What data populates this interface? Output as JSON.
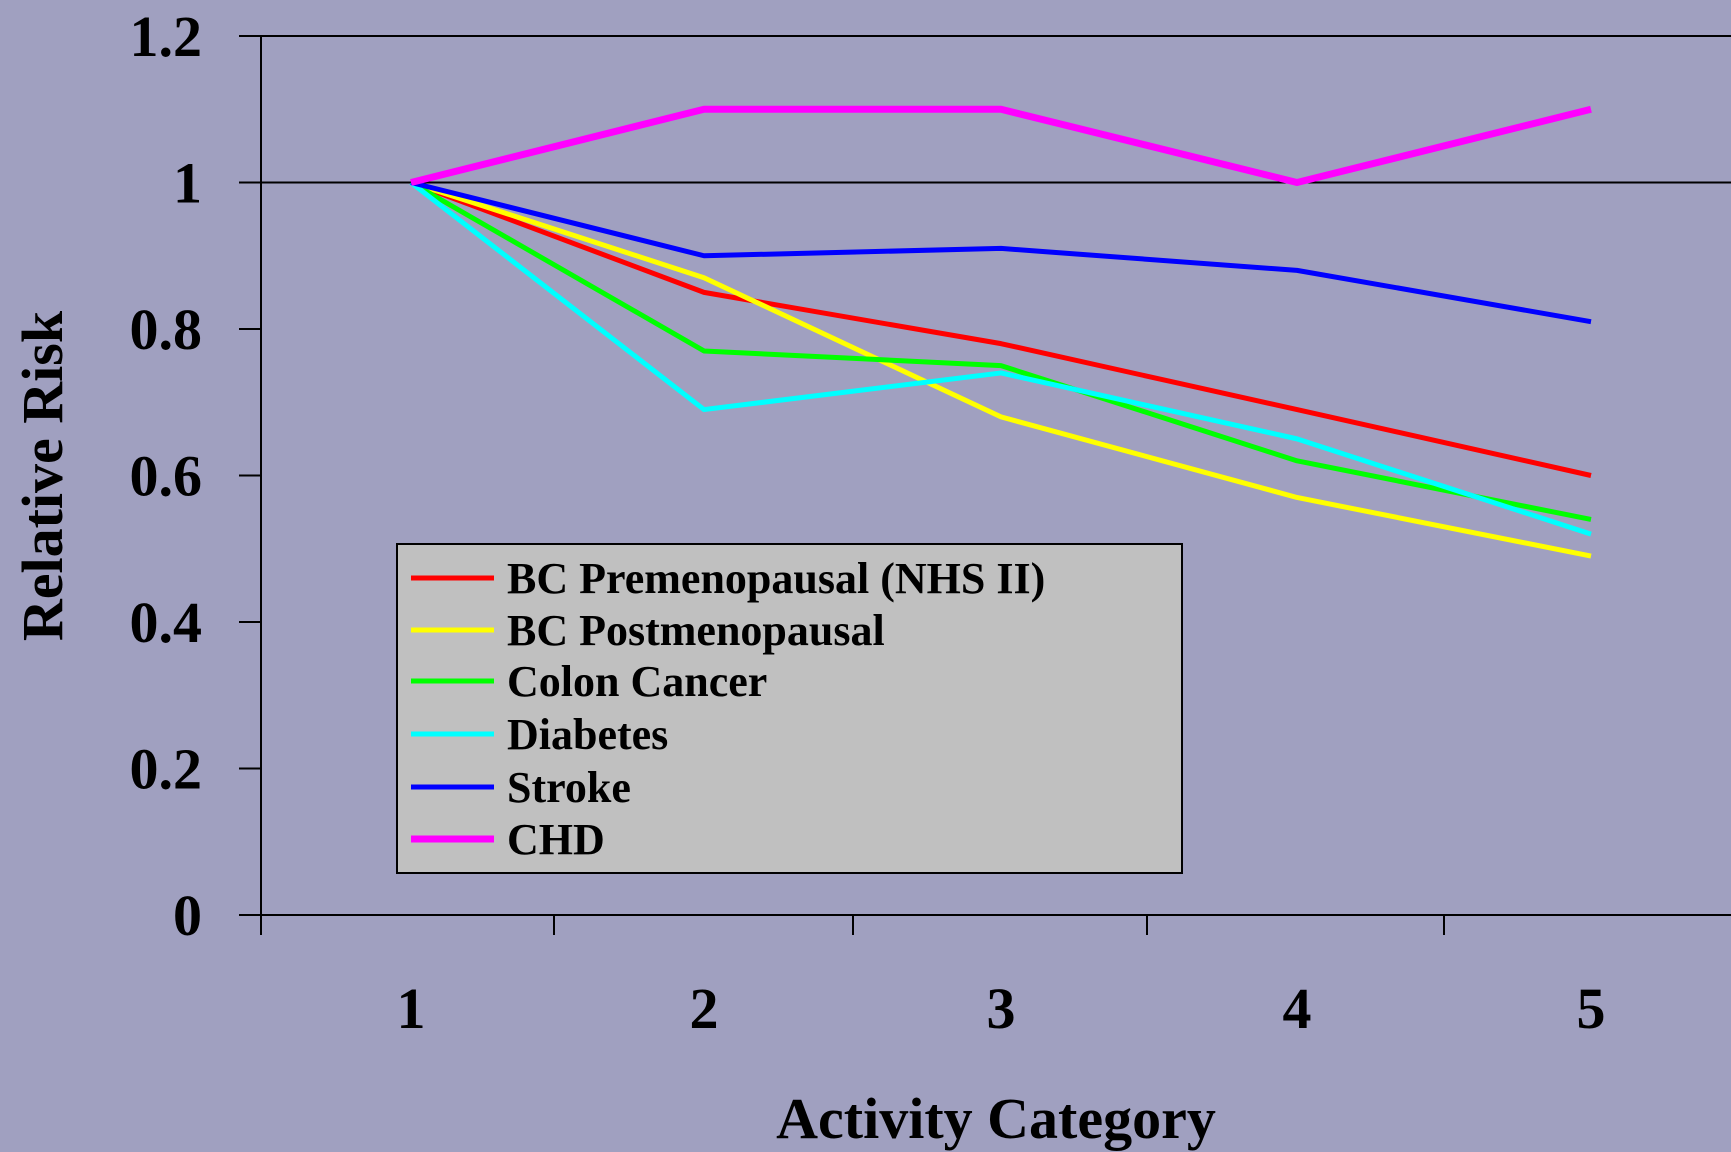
{
  "chart_data": {
    "type": "line",
    "title": "",
    "xlabel": "Activity Category",
    "ylabel": "Relative Risk",
    "categories": [
      "1",
      "2",
      "3",
      "4",
      "5"
    ],
    "ylim": [
      0,
      1.2
    ],
    "yticks": [
      "0",
      "0.2",
      "0.4",
      "0.6",
      "0.8",
      "1",
      "1.2"
    ],
    "grid": false,
    "reference_line": 1,
    "legend_position": "lower-left",
    "series": [
      {
        "name": "BC Premenopausal (NHS II)",
        "color": "#ff0000",
        "values": [
          1.0,
          0.85,
          0.78,
          0.69,
          0.6
        ]
      },
      {
        "name": "BC Postmenopausal",
        "color": "#ffff00",
        "values": [
          1.0,
          0.87,
          0.68,
          0.57,
          0.49
        ]
      },
      {
        "name": "Colon Cancer",
        "color": "#00ff00",
        "values": [
          1.0,
          0.77,
          0.75,
          0.62,
          0.54
        ]
      },
      {
        "name": "Diabetes",
        "color": "#00ffff",
        "values": [
          1.0,
          0.69,
          0.74,
          0.65,
          0.52
        ]
      },
      {
        "name": "Stroke",
        "color": "#0000ff",
        "values": [
          1.0,
          0.9,
          0.91,
          0.88,
          0.81
        ]
      },
      {
        "name": "CHD",
        "color": "#ff00ff",
        "values": [
          1.0,
          1.1,
          1.1,
          1.0,
          1.1
        ]
      }
    ]
  }
}
